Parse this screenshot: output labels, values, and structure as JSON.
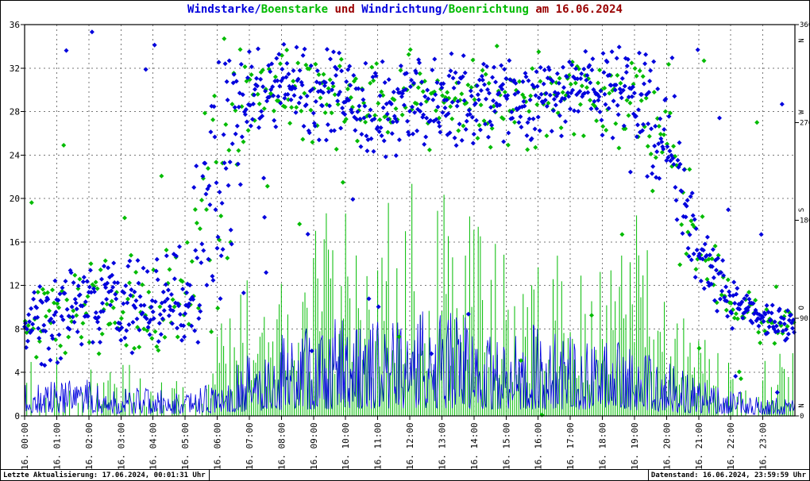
{
  "title": {
    "windstarke": "Windstarke/",
    "boenstarke": "Boenstarke",
    "und": " und ",
    "windrichtung": "Windrichtung/",
    "boenrichtung": "Boenrichtung",
    "datum": " am 16.06.2024"
  },
  "footer": {
    "left": "Letzte Aktualisierung: 17.06.2024, 00:01:31 Uhr",
    "right": "Datenstand: 16.06.2024, 23:59:59 Uhr"
  },
  "colors": {
    "wind_blue": "#0000dd",
    "gust_green": "#00bb00",
    "accent_red": "#990000",
    "grid_gray": "#777777",
    "frame_black": "#000000"
  },
  "chart_data": {
    "type": "mixed",
    "title": "Windstarke/Boenstarke und Windrichtung/Boenrichtung am 16.06.2024",
    "legend": "none",
    "grid": {
      "dashed": true,
      "vertical_every_hours": 1,
      "horizontal_every_left_units": 4
    },
    "x": {
      "hours": 24,
      "tick_labels": [
        "16. 00:00",
        "16. 01:00",
        "16. 02:00",
        "16. 03:00",
        "16. 04:00",
        "16. 05:00",
        "16. 06:00",
        "16. 07:00",
        "16. 08:00",
        "16. 09:00",
        "16. 10:00",
        "16. 11:00",
        "16. 12:00",
        "16. 13:00",
        "16. 14:00",
        "16. 15:00",
        "16. 16:00",
        "16. 17:00",
        "16. 18:00",
        "16. 19:00",
        "16. 20:00",
        "16. 21:00",
        "16. 22:00",
        "16. 23:00"
      ]
    },
    "y_left": {
      "min": 0,
      "max": 36,
      "step": 4,
      "ticks": [
        0,
        4,
        8,
        12,
        16,
        20,
        24,
        28,
        32,
        36
      ]
    },
    "y_right": {
      "min": 0,
      "max": 360,
      "step": 90,
      "ticks": [
        0,
        90,
        180,
        270,
        360
      ],
      "compass": [
        {
          "deg": 360,
          "label": "N"
        },
        {
          "deg": 270,
          "label": "W"
        },
        {
          "deg": 180,
          "label": "S"
        },
        {
          "deg": 90,
          "label": "O"
        },
        {
          "deg": 0,
          "label": "N"
        }
      ]
    },
    "series": [
      {
        "name": "Windstarke",
        "type": "line",
        "axis": "left",
        "color": "#0000dd",
        "hourly_mean": [
          1.8,
          2.0,
          2.0,
          1.6,
          1.5,
          1.2,
          2.0,
          3.5,
          4.5,
          5.0,
          5.5,
          5.5,
          6.0,
          6.0,
          5.5,
          5.2,
          5.0,
          4.8,
          4.2,
          4.0,
          3.0,
          2.0,
          1.5,
          1.0
        ]
      },
      {
        "name": "Boenstarke",
        "type": "bars",
        "axis": "left",
        "color": "#00bb00",
        "hourly_max": [
          5,
          6,
          5,
          5,
          4,
          3,
          8,
          14,
          16,
          18,
          20,
          19,
          22,
          23,
          18,
          17,
          16,
          15,
          16,
          20,
          12,
          8,
          5,
          6
        ]
      },
      {
        "name": "Windrichtung",
        "type": "scatter",
        "marker": "diamond",
        "axis": "right",
        "color": "#0000dd",
        "hourly_center_deg": [
          80,
          90,
          100,
          105,
          100,
          110,
          200,
          300,
          300,
          295,
          290,
          285,
          290,
          290,
          285,
          290,
          290,
          295,
          300,
          300,
          250,
          150,
          110,
          85
        ],
        "hourly_spread_deg": [
          45,
          45,
          50,
          50,
          45,
          55,
          170,
          45,
          45,
          50,
          50,
          55,
          50,
          50,
          50,
          45,
          45,
          40,
          45,
          50,
          90,
          45,
          25,
          18
        ]
      },
      {
        "name": "Boenrichtung",
        "type": "scatter",
        "marker": "diamond",
        "axis": "right",
        "color": "#00bb00",
        "hourly_center_deg": [
          80,
          90,
          100,
          105,
          100,
          110,
          200,
          300,
          300,
          295,
          290,
          285,
          290,
          290,
          285,
          290,
          290,
          295,
          300,
          300,
          250,
          150,
          110,
          85
        ],
        "hourly_spread_deg": [
          45,
          45,
          50,
          50,
          45,
          55,
          170,
          45,
          45,
          50,
          50,
          55,
          50,
          50,
          50,
          45,
          45,
          40,
          45,
          50,
          90,
          45,
          25,
          18
        ]
      }
    ]
  }
}
